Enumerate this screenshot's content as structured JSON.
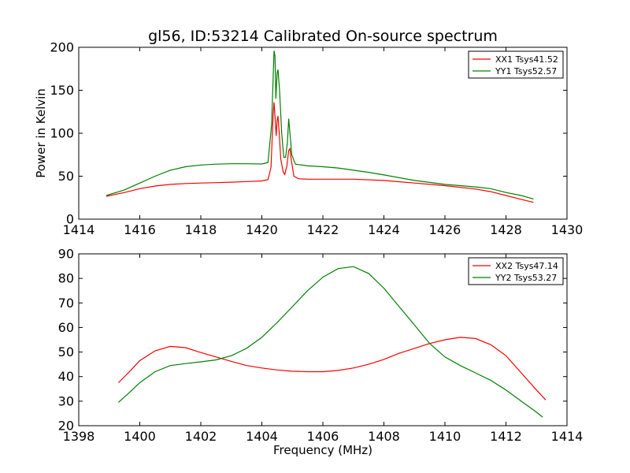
{
  "figure": {
    "title": "gl56, ID:53214 Calibrated On-source spectrum",
    "ylabel": "Power in Kelvin",
    "xlabel": "Frequency (MHz)"
  },
  "colors": {
    "XX": "#ff0000",
    "YY": "#008000"
  },
  "chart_data": [
    {
      "type": "line",
      "title": "gl56, ID:53214 Calibrated On-source spectrum",
      "xlabel": "",
      "ylabel": "Power in Kelvin",
      "xlim": [
        1414,
        1430
      ],
      "ylim": [
        0,
        200
      ],
      "x_ticks": [
        1414,
        1416,
        1418,
        1420,
        1422,
        1424,
        1426,
        1428,
        1430
      ],
      "y_ticks": [
        0,
        50,
        100,
        150,
        200
      ],
      "grid": false,
      "legend": "top-right",
      "series": [
        {
          "name": "XX1 Tsys41.52",
          "color": "#ff0000",
          "points": [
            [
              1414.9,
              26.5
            ],
            [
              1415.5,
              31
            ],
            [
              1416,
              35.5
            ],
            [
              1416.5,
              38.5
            ],
            [
              1417,
              40.5
            ],
            [
              1417.5,
              41.5
            ],
            [
              1418,
              42
            ],
            [
              1418.5,
              42.5
            ],
            [
              1419,
              43
            ],
            [
              1419.5,
              43.8
            ],
            [
              1420,
              44.5
            ],
            [
              1420.2,
              46
            ],
            [
              1420.3,
              60
            ],
            [
              1420.37,
              120
            ],
            [
              1420.4,
              136
            ],
            [
              1420.43,
              120
            ],
            [
              1420.47,
              97
            ],
            [
              1420.5,
              115
            ],
            [
              1420.53,
              120
            ],
            [
              1420.57,
              100
            ],
            [
              1420.62,
              70
            ],
            [
              1420.7,
              55
            ],
            [
              1420.75,
              52
            ],
            [
              1420.82,
              62
            ],
            [
              1420.88,
              80
            ],
            [
              1420.92,
              82
            ],
            [
              1420.96,
              70
            ],
            [
              1421.05,
              50
            ],
            [
              1421.2,
              47
            ],
            [
              1421.5,
              46.5
            ],
            [
              1422,
              46.5
            ],
            [
              1423,
              46.5
            ],
            [
              1424,
              45
            ],
            [
              1425,
              42
            ],
            [
              1426,
              39
            ],
            [
              1427,
              35
            ],
            [
              1427.5,
              32
            ],
            [
              1428,
              27.5
            ],
            [
              1428.5,
              23
            ],
            [
              1428.9,
              19.5
            ]
          ]
        },
        {
          "name": "YY1 Tsys52.57",
          "color": "#008000",
          "points": [
            [
              1414.9,
              27.5
            ],
            [
              1415.5,
              34
            ],
            [
              1416,
              42
            ],
            [
              1416.5,
              50
            ],
            [
              1417,
              57
            ],
            [
              1417.5,
              61
            ],
            [
              1418,
              63
            ],
            [
              1418.5,
              64
            ],
            [
              1419,
              64.5
            ],
            [
              1419.5,
              64.5
            ],
            [
              1420,
              64.2
            ],
            [
              1420.2,
              66
            ],
            [
              1420.32,
              110
            ],
            [
              1420.4,
              196
            ],
            [
              1420.43,
              190
            ],
            [
              1420.46,
              140
            ],
            [
              1420.5,
              170
            ],
            [
              1420.53,
              174
            ],
            [
              1420.58,
              150
            ],
            [
              1420.65,
              100
            ],
            [
              1420.72,
              72
            ],
            [
              1420.78,
              72
            ],
            [
              1420.84,
              90
            ],
            [
              1420.88,
              117
            ],
            [
              1420.92,
              100
            ],
            [
              1420.98,
              75
            ],
            [
              1421.1,
              64
            ],
            [
              1421.5,
              62
            ],
            [
              1422,
              61
            ],
            [
              1422.5,
              59.5
            ],
            [
              1423,
              57
            ],
            [
              1423.5,
              54.5
            ],
            [
              1424,
              51.5
            ],
            [
              1425,
              45
            ],
            [
              1426,
              40.5
            ],
            [
              1427,
              37.5
            ],
            [
              1427.5,
              35.5
            ],
            [
              1428,
              31
            ],
            [
              1428.5,
              27.5
            ],
            [
              1428.9,
              23.5
            ]
          ]
        }
      ]
    },
    {
      "type": "line",
      "title": "",
      "xlabel": "Frequency (MHz)",
      "ylabel": "",
      "xlim": [
        1398,
        1414
      ],
      "ylim": [
        20,
        90
      ],
      "x_ticks": [
        1398,
        1400,
        1402,
        1404,
        1406,
        1408,
        1410,
        1412,
        1414
      ],
      "y_ticks": [
        20,
        30,
        40,
        50,
        60,
        70,
        80,
        90
      ],
      "grid": false,
      "legend": "top-right",
      "series": [
        {
          "name": "XX2 Tsys47.14",
          "color": "#ff0000",
          "points": [
            [
              1399.3,
              37.5
            ],
            [
              1399.7,
              42.5
            ],
            [
              1400,
              46.5
            ],
            [
              1400.5,
              50.5
            ],
            [
              1401,
              52.3
            ],
            [
              1401.5,
              51.8
            ],
            [
              1402,
              49.8
            ],
            [
              1402.5,
              48
            ],
            [
              1403,
              46.2
            ],
            [
              1403.5,
              44.5
            ],
            [
              1404,
              43.5
            ],
            [
              1404.5,
              42.7
            ],
            [
              1405,
              42.2
            ],
            [
              1405.5,
              42
            ],
            [
              1406,
              42
            ],
            [
              1406.5,
              42.5
            ],
            [
              1407,
              43.5
            ],
            [
              1407.5,
              45
            ],
            [
              1408,
              47
            ],
            [
              1408.5,
              49.5
            ],
            [
              1409,
              51.5
            ],
            [
              1409.5,
              53.5
            ],
            [
              1410,
              55
            ],
            [
              1410.5,
              56
            ],
            [
              1411,
              55.5
            ],
            [
              1411.5,
              53
            ],
            [
              1412,
              48.5
            ],
            [
              1412.5,
              41.5
            ],
            [
              1413,
              34.5
            ],
            [
              1413.3,
              30.5
            ]
          ]
        },
        {
          "name": "YY2 Tsys53.27",
          "color": "#008000",
          "points": [
            [
              1399.3,
              29.5
            ],
            [
              1399.7,
              34
            ],
            [
              1400,
              37.5
            ],
            [
              1400.5,
              42
            ],
            [
              1401,
              44.5
            ],
            [
              1401.5,
              45.3
            ],
            [
              1402,
              46
            ],
            [
              1402.5,
              46.8
            ],
            [
              1403,
              48.5
            ],
            [
              1403.5,
              51.5
            ],
            [
              1404,
              56
            ],
            [
              1404.5,
              62
            ],
            [
              1405,
              68.5
            ],
            [
              1405.5,
              75
            ],
            [
              1406,
              80.5
            ],
            [
              1406.5,
              84
            ],
            [
              1407,
              84.8
            ],
            [
              1407.5,
              82
            ],
            [
              1408,
              76
            ],
            [
              1408.5,
              68.5
            ],
            [
              1409,
              61
            ],
            [
              1409.5,
              53.5
            ],
            [
              1410,
              48
            ],
            [
              1410.5,
              44.5
            ],
            [
              1411,
              41.5
            ],
            [
              1411.5,
              38.5
            ],
            [
              1412,
              34.5
            ],
            [
              1412.5,
              30
            ],
            [
              1413,
              25.5
            ],
            [
              1413.2,
              23.5
            ]
          ]
        }
      ]
    }
  ]
}
